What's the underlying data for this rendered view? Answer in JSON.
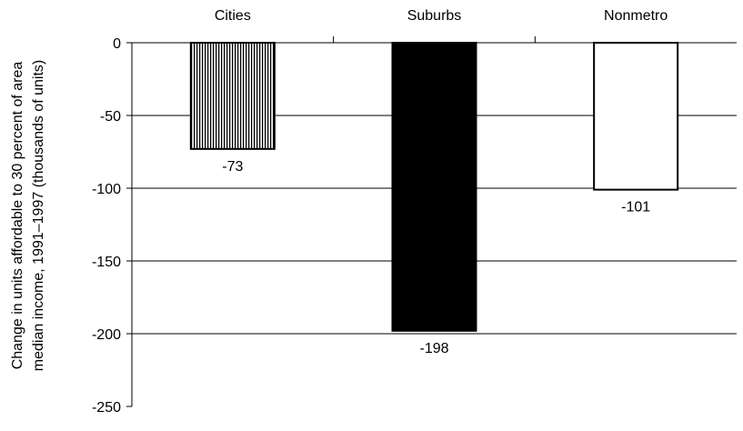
{
  "chart_data": {
    "type": "bar",
    "categories": [
      "Cities",
      "Suburbs",
      "Nonmetro"
    ],
    "values": [
      -73,
      -198,
      -101
    ],
    "data_labels": [
      "-73",
      "-198",
      "-101"
    ],
    "ylabel_lines": [
      "Change in units affordable to 30 percent of area",
      "median income, 1991–1997 (thousands of units)"
    ],
    "ylim": [
      -250,
      0
    ],
    "yticks": [
      0,
      -50,
      -100,
      -150,
      -200,
      -250
    ],
    "ytick_labels": [
      "0",
      "-50",
      "-100",
      "-150",
      "-200",
      "-250"
    ],
    "category_labels_position": "top",
    "grid": true,
    "bar_styles": [
      "vertical-hatch",
      "solid-black",
      "white-outline"
    ]
  }
}
